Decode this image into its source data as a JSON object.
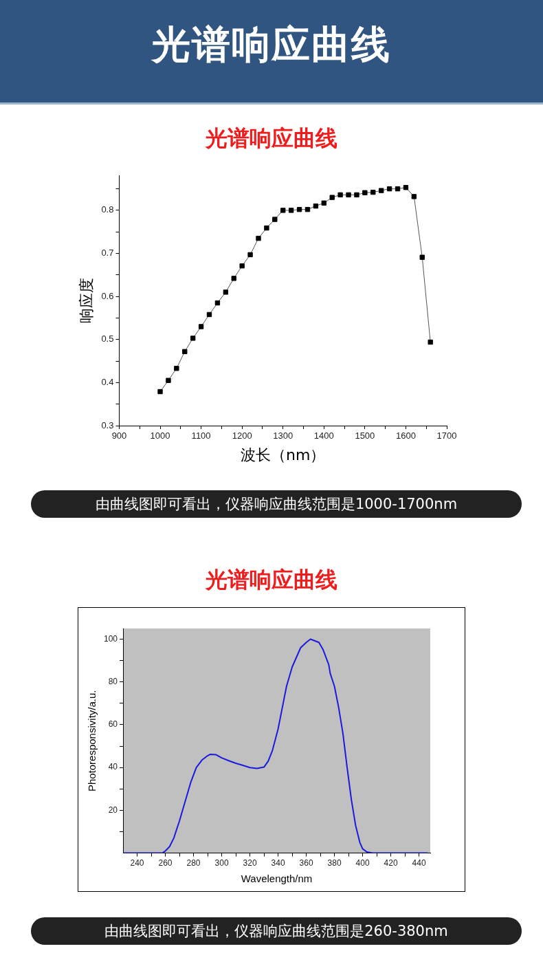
{
  "chart_data": [
    {
      "type": "line",
      "title": "光谱响应曲线",
      "subtitle": "光谱响应曲线",
      "xlabel": "波长（nm）",
      "ylabel": "响应度",
      "x": [
        1000,
        1020,
        1040,
        1060,
        1080,
        1100,
        1120,
        1140,
        1160,
        1180,
        1200,
        1220,
        1240,
        1260,
        1280,
        1300,
        1320,
        1340,
        1360,
        1380,
        1400,
        1420,
        1440,
        1460,
        1480,
        1500,
        1520,
        1540,
        1560,
        1580,
        1600,
        1620,
        1640,
        1660
      ],
      "series": [
        {
          "color": "#000000",
          "values": [
            0.379,
            0.405,
            0.433,
            0.472,
            0.503,
            0.53,
            0.558,
            0.585,
            0.61,
            0.642,
            0.671,
            0.697,
            0.735,
            0.759,
            0.779,
            0.8,
            0.8,
            0.802,
            0.802,
            0.81,
            0.817,
            0.83,
            0.836,
            0.836,
            0.836,
            0.841,
            0.842,
            0.846,
            0.85,
            0.85,
            0.853,
            0.832,
            0.691,
            0.494
          ]
        }
      ],
      "xlim": [
        900,
        1700
      ],
      "ylim": [
        0.3,
        0.88
      ],
      "xticks": [
        900,
        {
          "value": 950,
          "label": null
        },
        1000,
        {
          "value": 1050,
          "label": null
        },
        1100,
        {
          "value": 1150,
          "label": null
        },
        1200,
        {
          "value": 1250,
          "label": null
        },
        1300,
        {
          "value": 1350,
          "label": null
        },
        1400,
        {
          "value": 1450,
          "label": null
        },
        1500,
        {
          "value": 1550,
          "label": null
        },
        1600,
        {
          "value": 1650,
          "label": null
        },
        1700
      ],
      "yticks": [
        0.3,
        {
          "value": 0.35,
          "label": null
        },
        0.4,
        {
          "value": 0.45,
          "label": null
        },
        0.5,
        {
          "value": 0.55,
          "label": null
        },
        0.6,
        {
          "value": 0.65,
          "label": null
        },
        0.7,
        {
          "value": 0.75,
          "label": null
        },
        0.8,
        {
          "value": 0.85,
          "label": null
        }
      ],
      "marker": "square",
      "line_style": "solid",
      "grid": false,
      "legend": false,
      "annotations": [
        "由曲线图即可看出，仪器响应曲线范围是1000-1700nm"
      ]
    },
    {
      "type": "line",
      "title": "光谱响应曲线",
      "xlabel": "Wavelength/nm",
      "ylabel": "Photoresponsivity/a.u.",
      "x": [
        230,
        258,
        260,
        263,
        266,
        270,
        274,
        278,
        282,
        286,
        290,
        292,
        296,
        300,
        305,
        310,
        315,
        320,
        325,
        330,
        333,
        336,
        340,
        343,
        346,
        350,
        356,
        360,
        363,
        369,
        372,
        376,
        377,
        380,
        383,
        386,
        389,
        392,
        395,
        398,
        400,
        403,
        407,
        446
      ],
      "series": [
        {
          "color": "#1a1adc",
          "values": [
            0,
            0,
            1,
            3,
            7,
            15,
            24,
            33,
            40,
            43.5,
            45.5,
            46.2,
            46,
            44.5,
            43.2,
            42,
            41,
            40,
            39.6,
            40.2,
            43,
            48,
            58,
            68,
            78,
            87,
            96,
            98.5,
            100,
            98.5,
            95,
            88,
            84,
            78,
            68,
            56,
            40,
            25,
            13,
            5,
            2,
            0.5,
            0,
            0
          ]
        }
      ],
      "xlim": [
        230,
        448
      ],
      "ylim": [
        0,
        105
      ],
      "xticks": [
        240,
        {
          "value": 250,
          "label": null
        },
        260,
        {
          "value": 270,
          "label": null
        },
        280,
        {
          "value": 290,
          "label": null
        },
        300,
        {
          "value": 310,
          "label": null
        },
        320,
        {
          "value": 330,
          "label": null
        },
        340,
        {
          "value": 350,
          "label": null
        },
        360,
        {
          "value": 370,
          "label": null
        },
        380,
        {
          "value": 390,
          "label": null
        },
        400,
        {
          "value": 410,
          "label": null
        },
        420,
        {
          "value": 430,
          "label": null
        },
        440
      ],
      "yticks": [
        {
          "value": 10,
          "label": null
        },
        20,
        {
          "value": 30,
          "label": null
        },
        40,
        {
          "value": 50,
          "label": null
        },
        60,
        {
          "value": 70,
          "label": null
        },
        80,
        {
          "value": 90,
          "label": null
        },
        100
      ],
      "marker": "none",
      "line_style": "solid",
      "grid": false,
      "legend": false,
      "annotations": [
        "由曲线图即可看出，仪器响应曲线范围是260-380nm"
      ]
    }
  ]
}
